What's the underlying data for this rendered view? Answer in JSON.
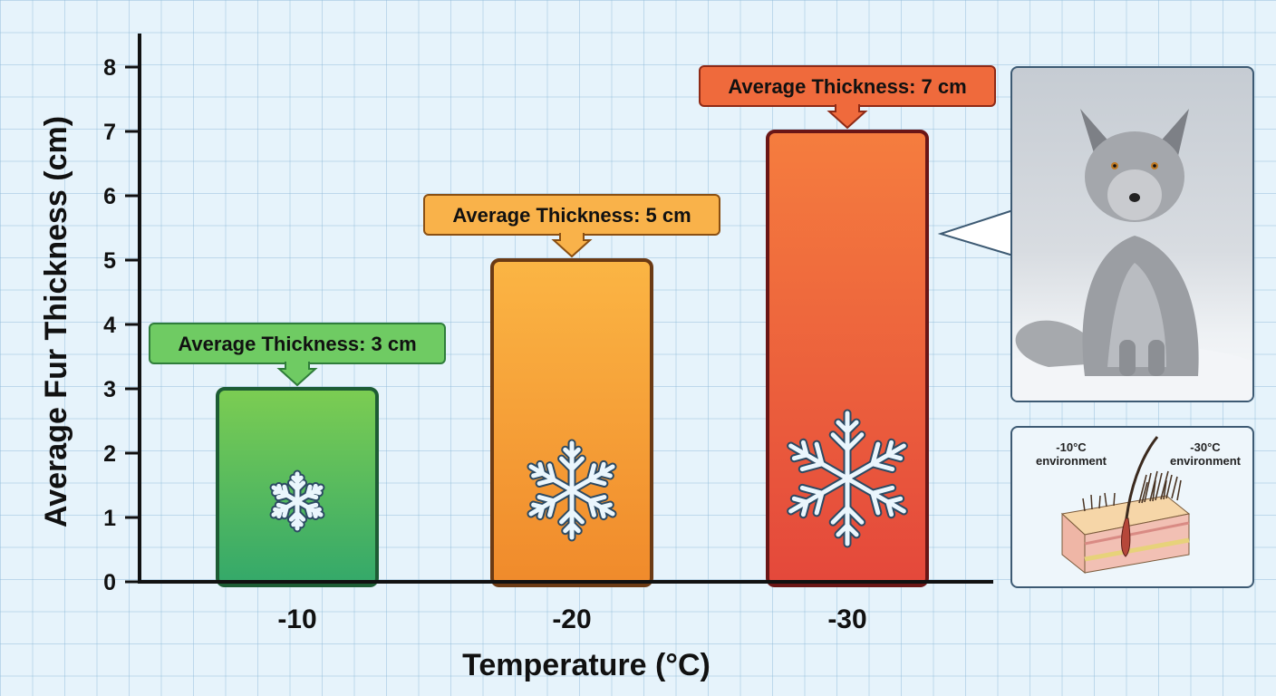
{
  "chart_data": {
    "type": "bar",
    "categories": [
      "-10",
      "-20",
      "-30"
    ],
    "values": [
      3,
      5,
      7
    ],
    "xlabel": "Temperature (°C)",
    "ylabel": "Average Fur Thickness (cm)",
    "ylim": [
      0,
      8
    ],
    "yticks": [
      "0",
      "1",
      "2",
      "3",
      "4",
      "5",
      "6",
      "7",
      "8"
    ],
    "annotations": [
      "Average Thickness: 3 cm",
      "Average Thickness: 5 cm",
      "Average Thickness: 7 cm"
    ],
    "bar_colors": [
      {
        "top": "#7ccd52",
        "bottom": "#33a86a",
        "border": "#1d5c34",
        "callout": "#6fcb63",
        "callout_border": "#2f7d3a"
      },
      {
        "top": "#fbb544",
        "bottom": "#f08a2b",
        "border": "#6b3a14",
        "callout": "#f9b24a",
        "callout_border": "#8a4f12"
      },
      {
        "top": "#f57d3e",
        "bottom": "#e4483b",
        "border": "#6a1616",
        "callout": "#ef6a3c",
        "callout_border": "#8e2a16"
      }
    ],
    "grid": true
  },
  "diagram": {
    "left_label": "-10°C\nenvironment",
    "right_label": "-30°C\nenvironment"
  }
}
